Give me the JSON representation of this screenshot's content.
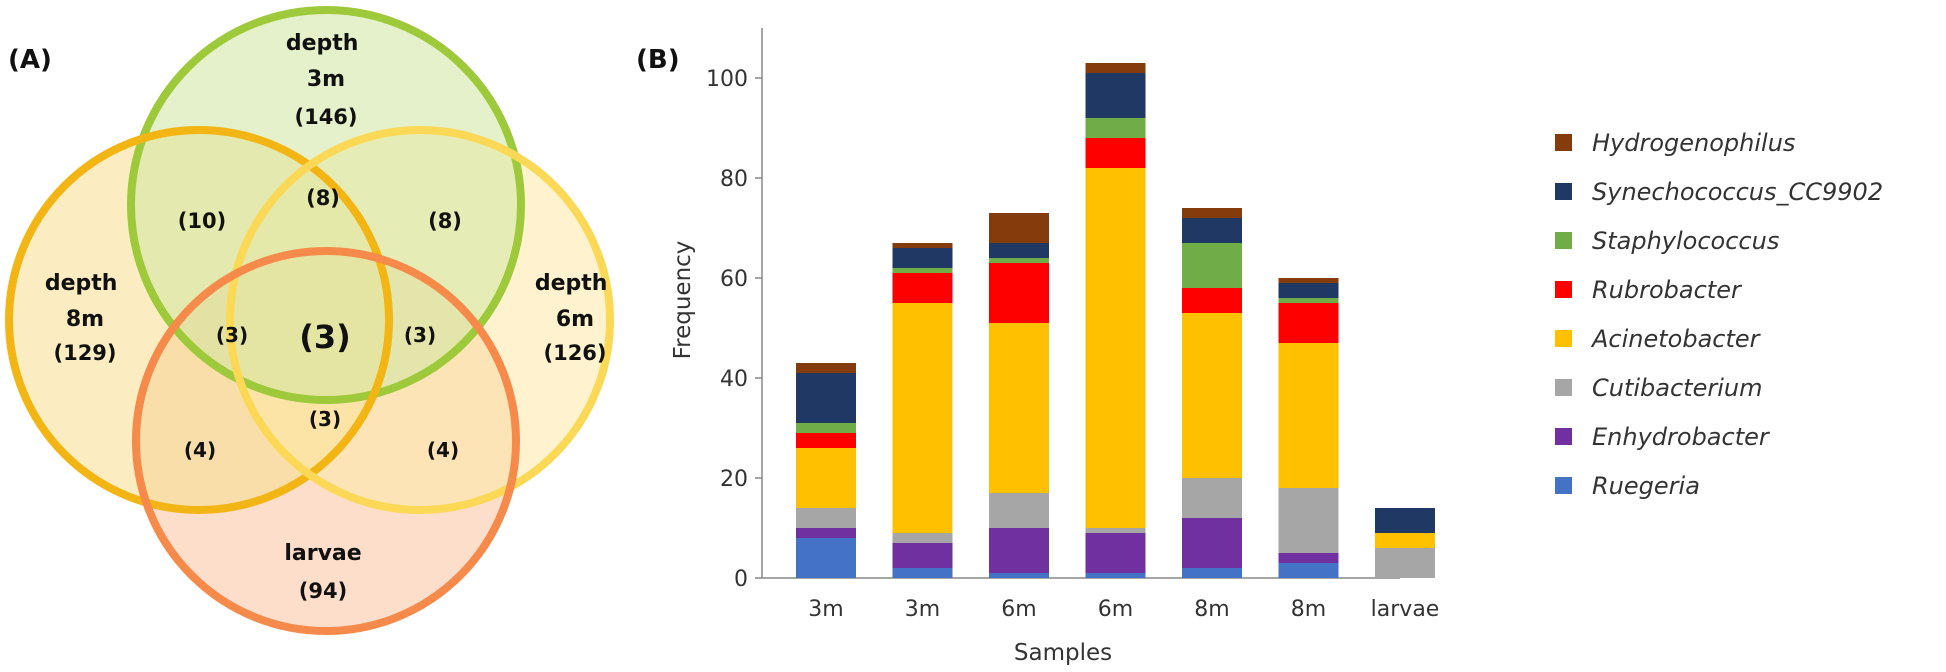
{
  "panel_a": {
    "label": "(A)",
    "sets": [
      {
        "name": "depth\n3m",
        "count": "(146)",
        "color": "#9dc93b",
        "fill": "#cfe5a0"
      },
      {
        "name": "depth\n8m",
        "count": "(129)",
        "color": "#f3b514",
        "fill": "#f8df8e"
      },
      {
        "name": "depth\n6m",
        "count": "(126)",
        "color": "#fbd957",
        "fill": "#fdeaa6"
      },
      {
        "name": "larvae",
        "count": "(94)",
        "color": "#f58a4b",
        "fill": "#f9c39e"
      }
    ],
    "regions": {
      "set3m_8m": "(10)",
      "set3m_8m_6m": "(8)",
      "set3m_6m": "(8)",
      "set3m_8m_larvae": "(3)",
      "all": "(3)",
      "set3m_6m_larvae": "(3)",
      "set8m_6m_larvae": "(3)",
      "set8m_larvae": "(4)",
      "set6m_larvae": "(4)"
    }
  },
  "panel_b": {
    "label": "(B)"
  },
  "chart_data": {
    "type": "bar",
    "stacked": true,
    "categories": [
      "3m",
      "3m",
      "6m",
      "6m",
      "8m",
      "8m",
      "larvae"
    ],
    "xlabel": "Samples",
    "ylabel": "Frequency",
    "ylim": [
      0,
      110
    ],
    "yticks": [
      0,
      20,
      40,
      60,
      80,
      100
    ],
    "legend_position": "right",
    "series": [
      {
        "name": "Ruegeria",
        "color": "#4472c4",
        "values": [
          8,
          2,
          1,
          1,
          2,
          3,
          0
        ]
      },
      {
        "name": "Enhydrobacter",
        "color": "#7030a0",
        "values": [
          2,
          5,
          9,
          8,
          10,
          2,
          0
        ]
      },
      {
        "name": "Cutibacterium",
        "color": "#a6a6a6",
        "values": [
          4,
          2,
          7,
          1,
          8,
          13,
          6
        ]
      },
      {
        "name": "Acinetobacter",
        "color": "#ffc000",
        "values": [
          12,
          46,
          34,
          72,
          33,
          29,
          3
        ]
      },
      {
        "name": "Rubrobacter",
        "color": "#ff0000",
        "values": [
          3,
          6,
          12,
          6,
          5,
          8,
          0
        ]
      },
      {
        "name": "Staphylococcus",
        "color": "#70ad47",
        "values": [
          2,
          1,
          1,
          4,
          9,
          1,
          0
        ]
      },
      {
        "name": "Synechococcus_CC9902",
        "color": "#203864",
        "values": [
          10,
          4,
          3,
          9,
          5,
          3,
          5
        ]
      },
      {
        "name": "Hydrogenophilus",
        "color": "#843c0c",
        "values": [
          2,
          1,
          6,
          2,
          2,
          1,
          0
        ]
      }
    ]
  }
}
